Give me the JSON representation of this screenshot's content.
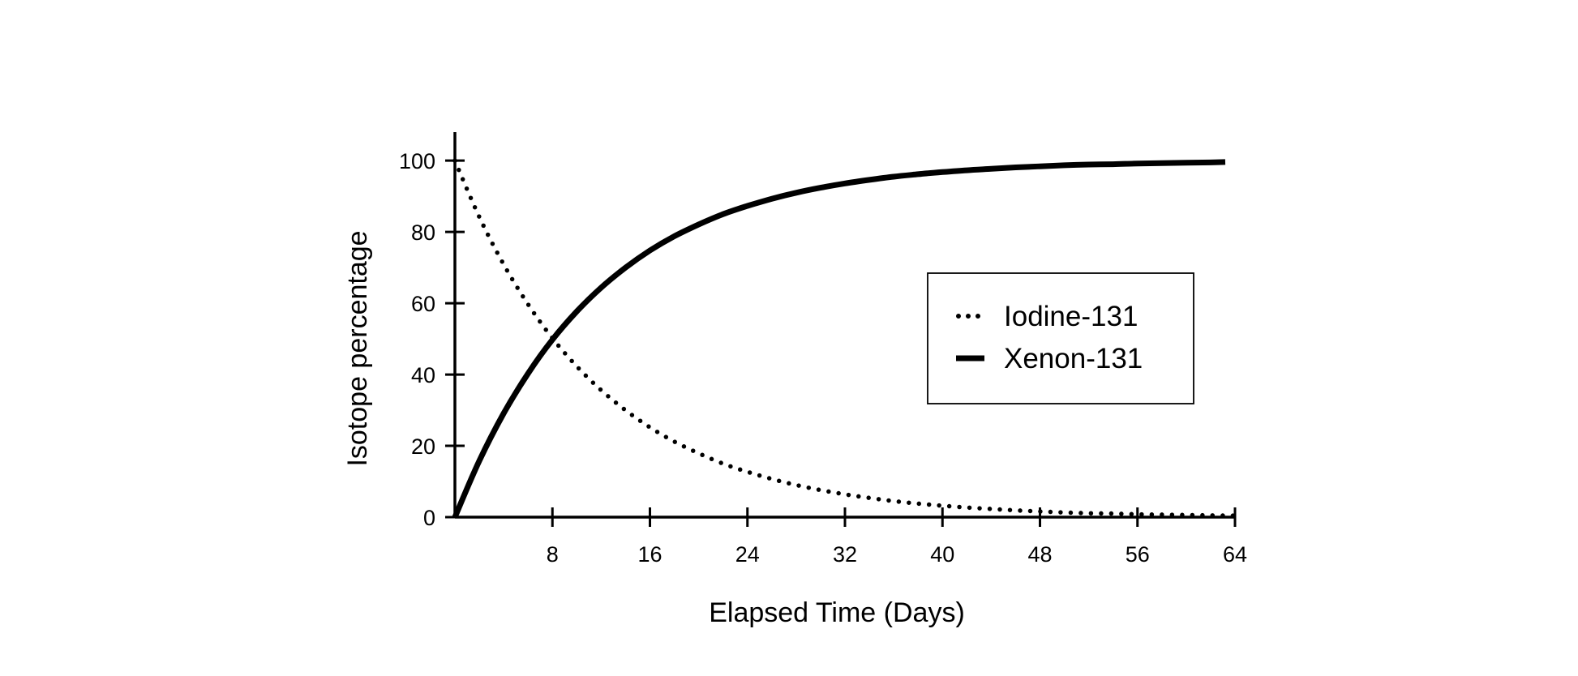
{
  "chart_data": {
    "type": "line",
    "title": "",
    "xlabel": "Elapsed Time (Days)",
    "ylabel": "Isotope percentage",
    "xlim": [
      0,
      64
    ],
    "ylim": [
      0,
      108
    ],
    "x_ticks": [
      8,
      16,
      24,
      32,
      40,
      48,
      56,
      64
    ],
    "y_ticks": [
      0,
      20,
      40,
      60,
      80,
      100
    ],
    "grid": false,
    "legend_position": "right",
    "series": [
      {
        "name": "Iodine-131",
        "style": "dotted",
        "color": "#000000",
        "x": [
          0,
          2,
          4,
          6,
          8,
          10,
          12,
          14,
          16,
          18,
          20,
          22,
          24,
          26,
          28,
          30,
          32,
          34,
          36,
          38,
          40,
          42,
          44,
          46,
          48,
          50,
          52,
          54,
          56,
          58,
          60,
          62,
          64
        ],
        "y": [
          100,
          84.2,
          70.9,
          59.7,
          50.2,
          42.3,
          35.6,
          30.0,
          25.2,
          21.2,
          17.9,
          15.0,
          12.7,
          10.7,
          9.0,
          7.6,
          6.4,
          5.4,
          4.5,
          3.8,
          3.2,
          2.7,
          2.3,
          1.9,
          1.6,
          1.3,
          1.1,
          1.0,
          0.8,
          0.7,
          0.6,
          0.5,
          0.4
        ]
      },
      {
        "name": "Xenon-131",
        "style": "solid",
        "color": "#000000",
        "x": [
          0,
          2,
          4,
          6,
          8,
          10,
          12,
          14,
          16,
          18,
          20,
          22,
          24,
          26,
          28,
          30,
          32,
          34,
          36,
          38,
          40,
          42,
          44,
          46,
          48,
          50,
          52,
          54,
          56,
          58,
          60,
          62,
          63.2
        ],
        "y": [
          0,
          15.8,
          29.1,
          40.3,
          49.8,
          57.7,
          64.4,
          70.0,
          74.8,
          78.8,
          82.1,
          85.0,
          87.3,
          89.3,
          91.0,
          92.4,
          93.6,
          94.6,
          95.5,
          96.2,
          96.8,
          97.3,
          97.7,
          98.1,
          98.4,
          98.7,
          98.9,
          99.0,
          99.2,
          99.3,
          99.4,
          99.5,
          99.6
        ]
      }
    ]
  }
}
